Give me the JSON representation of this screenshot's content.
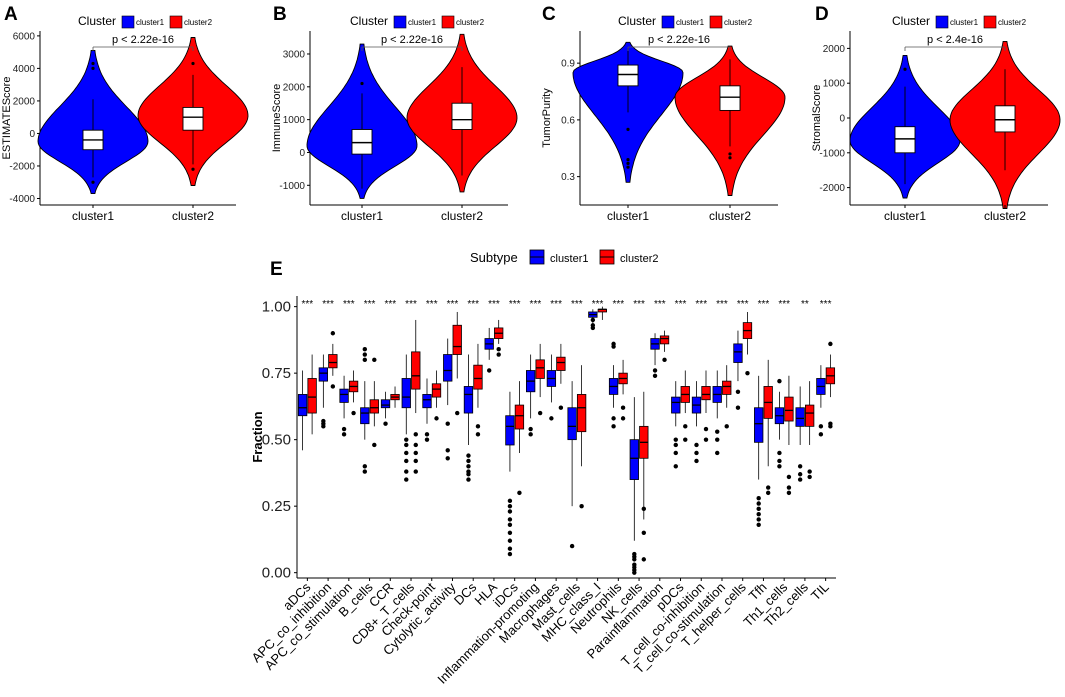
{
  "colors": {
    "cluster1": "#0000FF",
    "cluster2": "#FF0000"
  },
  "chart_data": [
    {
      "type": "violin",
      "panel": "A",
      "legend_title": "Cluster",
      "legend": [
        "cluster1",
        "cluster2"
      ],
      "ylabel": "ESTIMATEScore",
      "categories": [
        "cluster1",
        "cluster2"
      ],
      "yticks": [
        -4000,
        -2000,
        0,
        2000,
        4000,
        6000
      ],
      "ylim": [
        -4400,
        6300
      ],
      "pvalue": "p < 2.22e-16",
      "series": [
        {
          "name": "cluster1",
          "min": -3700,
          "max": 5100,
          "q1": -1000,
          "median": -400,
          "q3": 200,
          "w_lo": -2700,
          "w_hi": 2100,
          "mode": -500,
          "outliers": [
            4300,
            4000,
            -3000
          ]
        },
        {
          "name": "cluster2",
          "min": -3200,
          "max": 5900,
          "q1": 200,
          "median": 1000,
          "q3": 1600,
          "w_lo": -1900,
          "w_hi": 3600,
          "mode": 1100,
          "outliers": [
            4300,
            -2200
          ]
        }
      ]
    },
    {
      "type": "violin",
      "panel": "B",
      "legend_title": "Cluster",
      "legend": [
        "cluster1",
        "cluster2"
      ],
      "ylabel": "ImmuneScore",
      "categories": [
        "cluster1",
        "cluster2"
      ],
      "yticks": [
        -1000,
        0,
        1000,
        2000,
        3000
      ],
      "ylim": [
        -1600,
        3700
      ],
      "pvalue": "p < 2.22e-16",
      "series": [
        {
          "name": "cluster1",
          "min": -1400,
          "max": 3300,
          "q1": -50,
          "median": 300,
          "q3": 700,
          "w_lo": -1100,
          "w_hi": 1800,
          "mode": 200,
          "outliers": [
            2100
          ]
        },
        {
          "name": "cluster2",
          "min": -1200,
          "max": 3600,
          "q1": 700,
          "median": 1000,
          "q3": 1500,
          "w_lo": -700,
          "w_hi": 2600,
          "mode": 1050,
          "outliers": []
        }
      ]
    },
    {
      "type": "violin",
      "panel": "C",
      "legend_title": "Cluster",
      "legend": [
        "cluster1",
        "cluster2"
      ],
      "ylabel": "TumorPurity",
      "categories": [
        "cluster1",
        "cluster2"
      ],
      "yticks": [
        0.3,
        0.6,
        0.9
      ],
      "ylim": [
        0.15,
        1.07
      ],
      "pvalue": "p < 2.22e-16",
      "series": [
        {
          "name": "cluster1",
          "min": 0.27,
          "max": 1.01,
          "q1": 0.78,
          "median": 0.84,
          "q3": 0.89,
          "w_lo": 0.64,
          "w_hi": 0.98,
          "mode": 0.85,
          "outliers": [
            0.35,
            0.37,
            0.39,
            0.55
          ]
        },
        {
          "name": "cluster2",
          "min": 0.2,
          "max": 0.99,
          "q1": 0.65,
          "median": 0.72,
          "q3": 0.78,
          "w_lo": 0.46,
          "w_hi": 0.92,
          "mode": 0.72,
          "outliers": [
            0.4,
            0.42
          ]
        }
      ]
    },
    {
      "type": "violin",
      "panel": "D",
      "legend_title": "Cluster",
      "legend": [
        "cluster1",
        "cluster2"
      ],
      "ylabel": "StromalScore",
      "categories": [
        "cluster1",
        "cluster2"
      ],
      "yticks": [
        -2000,
        -1000,
        0,
        1000,
        2000
      ],
      "ylim": [
        -2500,
        2500
      ],
      "pvalue": "p < 2.4e-16",
      "series": [
        {
          "name": "cluster1",
          "min": -2300,
          "max": 1800,
          "q1": -1000,
          "median": -600,
          "q3": -250,
          "w_lo": -1900,
          "w_hi": 900,
          "mode": -650,
          "outliers": [
            1400
          ]
        },
        {
          "name": "cluster2",
          "min": -2600,
          "max": 2200,
          "q1": -400,
          "median": -50,
          "q3": 350,
          "w_lo": -1500,
          "w_hi": 1400,
          "mode": -50,
          "outliers": []
        }
      ]
    },
    {
      "type": "box",
      "panel": "E",
      "legend_title": "Subtype",
      "legend": [
        "cluster1",
        "cluster2"
      ],
      "ylabel": "Fraction",
      "yticks": [
        "0.00",
        "0.25",
        "0.50",
        "0.75",
        "1.00"
      ],
      "ylim": [
        -0.02,
        1.04
      ],
      "categories": [
        "aDCs",
        "APC_co_inhibition",
        "APC_co_stimulation",
        "B_cells",
        "CCR",
        "CD8+_T_cells",
        "Check-point",
        "Cytolytic_activity",
        "DCs",
        "HLA",
        "iDCs",
        "Inflammation-promoting",
        "Macrophages",
        "Mast_cells",
        "MHC_class_I",
        "Neutrophils",
        "NK_cells",
        "Parainflammation",
        "pDCs",
        "T_cell_co-inhibition",
        "T_cell_co-stimulation",
        "T_helper_cells",
        "Tfh",
        "Th1_cells",
        "Th2_cells",
        "TIL"
      ],
      "significance": [
        "***",
        "***",
        "***",
        "***",
        "***",
        "***",
        "***",
        "***",
        "***",
        "***",
        "***",
        "***",
        "***",
        "***",
        "***",
        "***",
        "***",
        "***",
        "***",
        "***",
        "***",
        "***",
        "***",
        "***",
        "**",
        "***"
      ],
      "series": [
        {
          "name": "cluster1",
          "boxes": [
            [
              0.46,
              0.59,
              0.62,
              0.67,
              0.76,
              []
            ],
            [
              0.62,
              0.72,
              0.75,
              0.77,
              0.82,
              [
                0.55,
                0.56,
                0.57
              ]
            ],
            [
              0.58,
              0.64,
              0.67,
              0.69,
              0.74,
              [
                0.52,
                0.54
              ]
            ],
            [
              0.5,
              0.56,
              0.6,
              0.62,
              0.72,
              [
                0.38,
                0.4,
                0.8,
                0.82,
                0.84
              ]
            ],
            [
              0.58,
              0.62,
              0.63,
              0.65,
              0.68,
              [
                0.56
              ]
            ],
            [
              0.52,
              0.62,
              0.66,
              0.73,
              0.82,
              [
                0.35,
                0.38,
                0.42,
                0.45,
                0.48,
                0.5
              ]
            ],
            [
              0.56,
              0.62,
              0.65,
              0.67,
              0.73,
              [
                0.5,
                0.52
              ]
            ],
            [
              0.63,
              0.72,
              0.76,
              0.82,
              0.88,
              [
                0.43,
                0.46,
                0.56
              ]
            ],
            [
              0.48,
              0.6,
              0.67,
              0.7,
              0.82,
              [
                0.35,
                0.37,
                0.38,
                0.4,
                0.42,
                0.44
              ]
            ],
            [
              0.8,
              0.84,
              0.86,
              0.88,
              0.92,
              [
                0.76
              ]
            ],
            [
              0.38,
              0.48,
              0.55,
              0.59,
              0.68,
              [
                0.07,
                0.09,
                0.12,
                0.15,
                0.18,
                0.2,
                0.23,
                0.25,
                0.27
              ]
            ],
            [
              0.58,
              0.68,
              0.72,
              0.76,
              0.82,
              [
                0.52,
                0.54
              ]
            ],
            [
              0.64,
              0.7,
              0.73,
              0.76,
              0.82,
              [
                0.58
              ]
            ],
            [
              0.25,
              0.5,
              0.55,
              0.62,
              0.72,
              [
                0.1
              ]
            ],
            [
              0.93,
              0.96,
              0.97,
              0.98,
              0.99,
              [
                0.92,
                0.93,
                0.95
              ]
            ],
            [
              0.62,
              0.67,
              0.7,
              0.73,
              0.78,
              [
                0.55,
                0.58,
                0.85,
                0.86
              ]
            ],
            [
              0.12,
              0.35,
              0.43,
              0.5,
              0.66,
              [
                0.0,
                0.01,
                0.02,
                0.03,
                0.05,
                0.06,
                0.07
              ]
            ],
            [
              0.78,
              0.84,
              0.86,
              0.88,
              0.9,
              [
                0.74,
                0.76
              ]
            ],
            [
              0.55,
              0.6,
              0.64,
              0.66,
              0.72,
              [
                0.4,
                0.45,
                0.48,
                0.5
              ]
            ],
            [
              0.55,
              0.6,
              0.63,
              0.66,
              0.72,
              [
                0.42,
                0.45,
                0.48
              ]
            ],
            [
              0.58,
              0.64,
              0.67,
              0.7,
              0.76,
              [
                0.45,
                0.5,
                0.53
              ]
            ],
            [
              0.72,
              0.79,
              0.83,
              0.86,
              0.91,
              [
                0.62,
                0.68
              ]
            ],
            [
              0.35,
              0.49,
              0.56,
              0.62,
              0.74,
              [
                0.18,
                0.2,
                0.22,
                0.24,
                0.26,
                0.28
              ]
            ],
            [
              0.5,
              0.56,
              0.59,
              0.62,
              0.68,
              [
                0.4,
                0.42,
                0.45,
                0.72
              ]
            ],
            [
              0.48,
              0.55,
              0.58,
              0.62,
              0.7,
              [
                0.35,
                0.37,
                0.4
              ]
            ],
            [
              0.62,
              0.67,
              0.7,
              0.73,
              0.78,
              [
                0.52,
                0.55
              ]
            ]
          ]
        },
        {
          "name": "cluster2",
          "boxes": [
            [
              0.52,
              0.6,
              0.66,
              0.73,
              0.82,
              []
            ],
            [
              0.74,
              0.77,
              0.79,
              0.82,
              0.86,
              [
                0.7,
                0.9
              ]
            ],
            [
              0.64,
              0.68,
              0.7,
              0.72,
              0.76,
              [
                0.6
              ]
            ],
            [
              0.55,
              0.6,
              0.62,
              0.65,
              0.72,
              [
                0.48,
                0.8
              ]
            ],
            [
              0.62,
              0.65,
              0.66,
              0.67,
              0.7,
              []
            ],
            [
              0.6,
              0.69,
              0.74,
              0.83,
              0.95,
              [
                0.38,
                0.42,
                0.45,
                0.48,
                0.52
              ]
            ],
            [
              0.62,
              0.66,
              0.69,
              0.71,
              0.76,
              [
                0.58
              ]
            ],
            [
              0.73,
              0.82,
              0.85,
              0.93,
              0.98,
              [
                0.6
              ]
            ],
            [
              0.62,
              0.69,
              0.73,
              0.78,
              0.86,
              [
                0.52,
                0.55
              ]
            ],
            [
              0.86,
              0.88,
              0.9,
              0.92,
              0.95,
              [
                0.82,
                0.84
              ]
            ],
            [
              0.45,
              0.54,
              0.59,
              0.63,
              0.72,
              [
                0.3
              ]
            ],
            [
              0.66,
              0.73,
              0.77,
              0.8,
              0.86,
              [
                0.6
              ]
            ],
            [
              0.71,
              0.76,
              0.79,
              0.81,
              0.86,
              [
                0.62
              ]
            ],
            [
              0.4,
              0.53,
              0.62,
              0.67,
              0.78,
              [
                0.25
              ]
            ],
            [
              0.95,
              0.98,
              0.99,
              0.99,
              1.0,
              []
            ],
            [
              0.67,
              0.71,
              0.73,
              0.75,
              0.8,
              [
                0.58,
                0.62
              ]
            ],
            [
              0.2,
              0.43,
              0.49,
              0.55,
              0.68,
              [
                0.05,
                0.15,
                0.24
              ]
            ],
            [
              0.83,
              0.86,
              0.88,
              0.89,
              0.91,
              [
                0.8
              ]
            ],
            [
              0.6,
              0.64,
              0.67,
              0.7,
              0.76,
              [
                0.5,
                0.55
              ]
            ],
            [
              0.6,
              0.65,
              0.67,
              0.7,
              0.76,
              [
                0.5,
                0.54
              ]
            ],
            [
              0.62,
              0.67,
              0.7,
              0.72,
              0.78,
              [
                0.55
              ]
            ],
            [
              0.82,
              0.88,
              0.91,
              0.94,
              0.98,
              [
                0.75
              ]
            ],
            [
              0.4,
              0.58,
              0.64,
              0.7,
              0.8,
              [
                0.3,
                0.32
              ]
            ],
            [
              0.48,
              0.57,
              0.61,
              0.66,
              0.74,
              [
                0.3,
                0.32,
                0.36
              ]
            ],
            [
              0.48,
              0.55,
              0.6,
              0.63,
              0.72,
              [
                0.36,
                0.38
              ]
            ],
            [
              0.66,
              0.71,
              0.74,
              0.77,
              0.82,
              [
                0.55,
                0.56,
                0.86
              ]
            ]
          ]
        }
      ]
    }
  ]
}
